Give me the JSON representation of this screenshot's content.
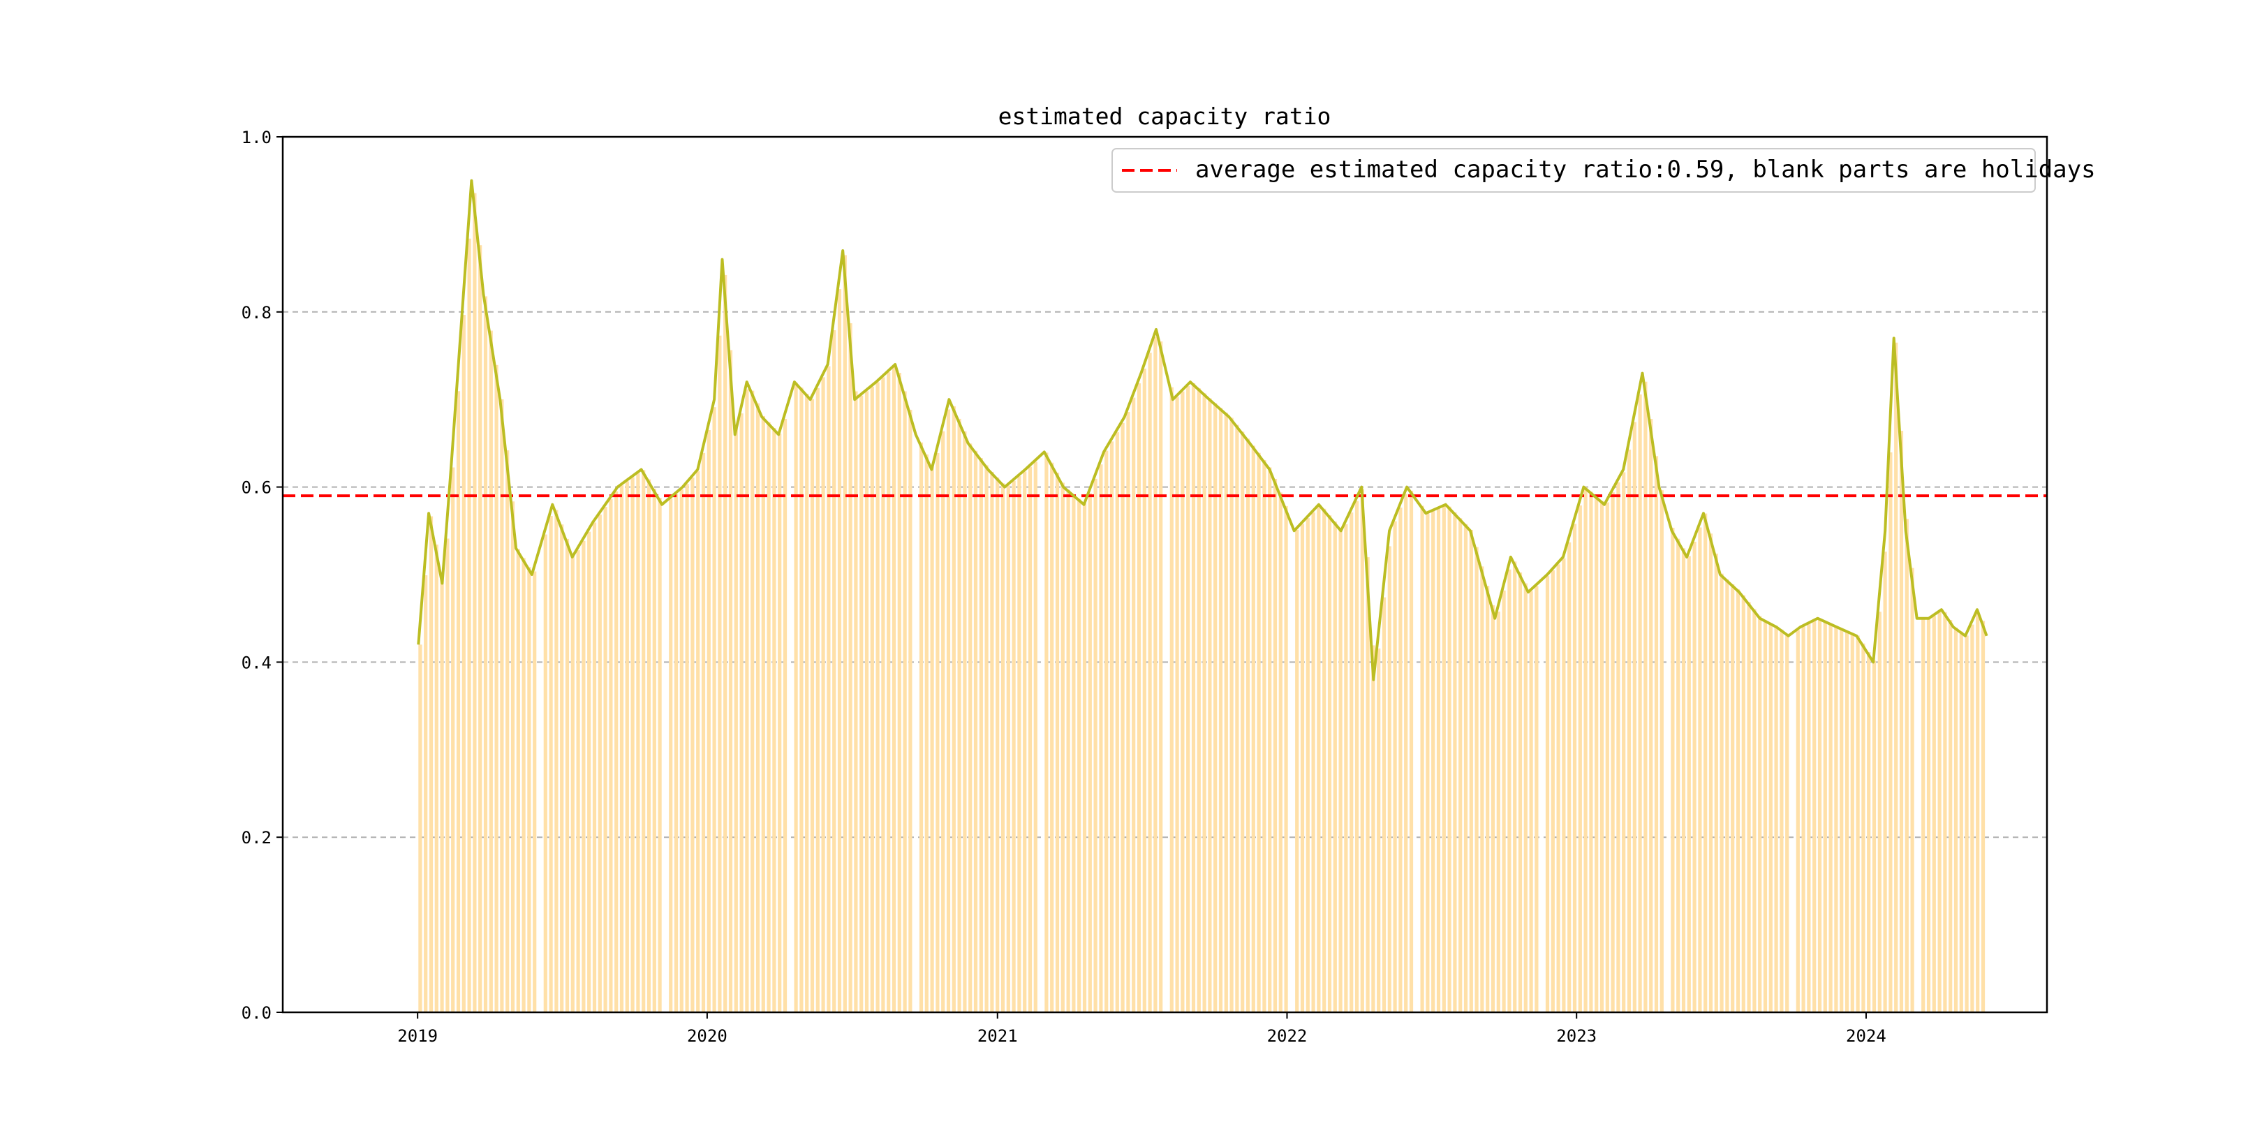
{
  "chart_data": {
    "type": "line",
    "title": "estimated capacity ratio",
    "xlabel": "",
    "ylabel": "",
    "xlim": [
      "2018-07-15",
      "2024-08-16"
    ],
    "ylim": [
      0.0,
      1.0
    ],
    "x_ticks": [
      "2019",
      "2020",
      "2021",
      "2022",
      "2023",
      "2024"
    ],
    "y_ticks": [
      "0.0",
      "0.2",
      "0.4",
      "0.6",
      "0.8",
      "1.0"
    ],
    "grid": "horizontal dashed",
    "legend": {
      "placement": "top-right",
      "entries": [
        "average estimated capacity ratio:0.59, blank parts are holidays"
      ]
    },
    "average_line": {
      "y": 0.59,
      "color": "#ff0000",
      "style": "dashed"
    },
    "series": [
      {
        "color": "#bcbd22",
        "x": [
          "2019-01-02",
          "2019-01-15",
          "2019-02-01",
          "2019-02-12",
          "2019-03-10",
          "2019-03-25",
          "2019-04-15",
          "2019-05-05",
          "2019-05-25",
          "2019-06-20",
          "2019-07-15",
          "2019-08-10",
          "2019-09-10",
          "2019-10-10",
          "2019-11-05",
          "2019-12-01",
          "2019-12-20",
          "2020-01-10",
          "2020-01-20",
          "2020-02-05",
          "2020-02-20",
          "2020-03-10",
          "2020-03-31",
          "2020-04-20",
          "2020-05-10",
          "2020-06-01",
          "2020-06-20",
          "2020-07-05",
          "2020-08-01",
          "2020-08-25",
          "2020-09-20",
          "2020-10-10",
          "2020-11-01",
          "2020-11-25",
          "2020-12-20",
          "2021-01-10",
          "2021-02-05",
          "2021-03-01",
          "2021-03-25",
          "2021-04-20",
          "2021-05-15",
          "2021-06-10",
          "2021-07-01",
          "2021-07-20",
          "2021-08-10",
          "2021-09-01",
          "2021-09-25",
          "2021-10-20",
          "2021-11-15",
          "2021-12-10",
          "2022-01-10",
          "2022-02-10",
          "2022-03-10",
          "2022-04-05",
          "2022-04-20",
          "2022-05-10",
          "2022-06-01",
          "2022-06-25",
          "2022-07-20",
          "2022-08-20",
          "2022-09-20",
          "2022-10-10",
          "2022-11-01",
          "2022-11-25",
          "2022-12-15",
          "2023-01-10",
          "2023-02-05",
          "2023-03-01",
          "2023-03-25",
          "2023-04-15",
          "2023-05-01",
          "2023-05-20",
          "2023-06-10",
          "2023-07-01",
          "2023-07-25",
          "2023-08-20",
          "2023-09-10",
          "2023-09-25",
          "2023-10-10",
          "2023-11-01",
          "2023-11-25",
          "2023-12-20",
          "2024-01-10",
          "2024-01-25",
          "2024-02-05",
          "2024-02-20",
          "2024-03-05",
          "2024-03-20",
          "2024-04-05",
          "2024-04-20",
          "2024-05-05",
          "2024-05-20",
          "2024-06-01"
        ],
        "y": [
          0.42,
          0.57,
          0.49,
          0.62,
          0.95,
          0.82,
          0.7,
          0.53,
          0.5,
          0.58,
          0.52,
          0.56,
          0.6,
          0.62,
          0.58,
          0.6,
          0.62,
          0.7,
          0.86,
          0.66,
          0.72,
          0.68,
          0.66,
          0.72,
          0.7,
          0.74,
          0.87,
          0.7,
          0.72,
          0.74,
          0.66,
          0.62,
          0.7,
          0.65,
          0.62,
          0.6,
          0.62,
          0.64,
          0.6,
          0.58,
          0.64,
          0.68,
          0.73,
          0.78,
          0.7,
          0.72,
          0.7,
          0.68,
          0.65,
          0.62,
          0.55,
          0.58,
          0.55,
          0.6,
          0.38,
          0.55,
          0.6,
          0.57,
          0.58,
          0.55,
          0.45,
          0.52,
          0.48,
          0.5,
          0.52,
          0.6,
          0.58,
          0.62,
          0.73,
          0.6,
          0.55,
          0.52,
          0.57,
          0.5,
          0.48,
          0.45,
          0.44,
          0.43,
          0.44,
          0.45,
          0.44,
          0.43,
          0.4,
          0.55,
          0.77,
          0.55,
          0.45,
          0.45,
          0.46,
          0.44,
          0.43,
          0.46,
          0.43
        ]
      }
    ],
    "holiday_bars": {
      "color": "#ffe0a8",
      "note": ""
    }
  }
}
